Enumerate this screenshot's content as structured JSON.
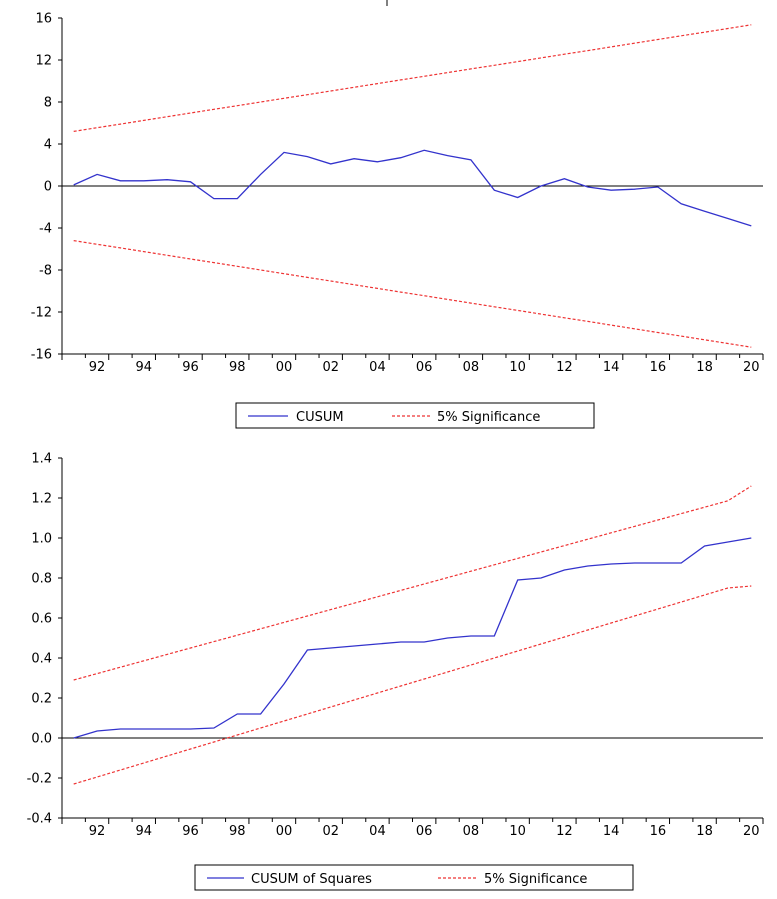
{
  "chart_data": [
    {
      "type": "line",
      "x": [
        "1991",
        "1992",
        "1993",
        "1994",
        "1995",
        "1996",
        "1997",
        "1998",
        "1999",
        "2000",
        "2001",
        "2002",
        "2003",
        "2004",
        "2005",
        "2006",
        "2007",
        "2008",
        "2009",
        "2010",
        "2011",
        "2012",
        "2013",
        "2014",
        "2015",
        "2016",
        "2017",
        "2018",
        "2019",
        "2020"
      ],
      "x_range": [
        1990.5,
        2020.5
      ],
      "ylim": [
        -16,
        16
      ],
      "yticks": [
        16,
        12,
        8,
        4,
        0,
        -4,
        -8,
        -12,
        -16
      ],
      "xticks": [
        {
          "label": "92",
          "year": 1992
        },
        {
          "label": "94",
          "year": 1994
        },
        {
          "label": "96",
          "year": 1996
        },
        {
          "label": "98",
          "year": 1998
        },
        {
          "label": "00",
          "year": 2000
        },
        {
          "label": "02",
          "year": 2002
        },
        {
          "label": "04",
          "year": 2004
        },
        {
          "label": "06",
          "year": 2006
        },
        {
          "label": "08",
          "year": 2008
        },
        {
          "label": "10",
          "year": 2010
        },
        {
          "label": "12",
          "year": 2012
        },
        {
          "label": "14",
          "year": 2014
        },
        {
          "label": "16",
          "year": 2016
        },
        {
          "label": "18",
          "year": 2018
        },
        {
          "label": "20",
          "year": 2020
        }
      ],
      "zero_line": 0,
      "series": [
        {
          "name": "CUSUM",
          "color": "#3333cc",
          "style": "solid",
          "values": [
            0.1,
            1.1,
            0.5,
            0.5,
            0.6,
            0.4,
            -1.2,
            -1.2,
            1.1,
            3.2,
            2.8,
            2.1,
            2.6,
            2.3,
            2.7,
            3.4,
            2.9,
            2.5,
            -0.4,
            -1.1,
            0.0,
            0.7,
            -0.1,
            -0.4,
            -0.3,
            -0.1,
            -1.7,
            -2.4,
            -3.1,
            -3.8
          ]
        },
        {
          "name": "5% Significance",
          "color": "#ee3333",
          "style": "dashed",
          "values": [
            5.2,
            5.55,
            5.9,
            6.25,
            6.6,
            6.95,
            7.3,
            7.65,
            8.0,
            8.35,
            8.7,
            9.05,
            9.4,
            9.75,
            10.1,
            10.45,
            10.8,
            11.15,
            11.5,
            11.85,
            12.2,
            12.55,
            12.9,
            13.25,
            13.6,
            13.95,
            14.3,
            14.65,
            15.0,
            15.35
          ]
        },
        {
          "name": "",
          "color": "#ee3333",
          "style": "dashed",
          "values": [
            -5.2,
            -5.55,
            -5.9,
            -6.25,
            -6.6,
            -6.95,
            -7.3,
            -7.65,
            -8.0,
            -8.35,
            -8.7,
            -9.05,
            -9.4,
            -9.75,
            -10.1,
            -10.45,
            -10.8,
            -11.15,
            -11.5,
            -11.85,
            -12.2,
            -12.55,
            -12.9,
            -13.25,
            -13.6,
            -13.95,
            -14.3,
            -14.65,
            -15.0,
            -15.35
          ]
        }
      ],
      "legend": {
        "position": "bottom-center",
        "items": [
          "CUSUM",
          "5% Significance"
        ]
      }
    },
    {
      "type": "line",
      "x": [
        "1991",
        "1992",
        "1993",
        "1994",
        "1995",
        "1996",
        "1997",
        "1998",
        "1999",
        "2000",
        "2001",
        "2002",
        "2003",
        "2004",
        "2005",
        "2006",
        "2007",
        "2008",
        "2009",
        "2010",
        "2011",
        "2012",
        "2013",
        "2014",
        "2015",
        "2016",
        "2017",
        "2018",
        "2019",
        "2020"
      ],
      "x_range": [
        1990.5,
        2020.5
      ],
      "ylim": [
        -0.4,
        1.4
      ],
      "yticks": [
        "1.4",
        "1.2",
        "1.0",
        "0.8",
        "0.6",
        "0.4",
        "0.2",
        "0.0",
        "-0.2",
        "-0.4"
      ],
      "xticks": [
        {
          "label": "92",
          "year": 1992
        },
        {
          "label": "94",
          "year": 1994
        },
        {
          "label": "96",
          "year": 1996
        },
        {
          "label": "98",
          "year": 1998
        },
        {
          "label": "00",
          "year": 2000
        },
        {
          "label": "02",
          "year": 2002
        },
        {
          "label": "04",
          "year": 2004
        },
        {
          "label": "06",
          "year": 2006
        },
        {
          "label": "08",
          "year": 2008
        },
        {
          "label": "10",
          "year": 2010
        },
        {
          "label": "12",
          "year": 2012
        },
        {
          "label": "14",
          "year": 2014
        },
        {
          "label": "16",
          "year": 2016
        },
        {
          "label": "18",
          "year": 2018
        },
        {
          "label": "20",
          "year": 2020
        }
      ],
      "zero_line": 0,
      "series": [
        {
          "name": "CUSUM of Squares",
          "color": "#3333cc",
          "style": "solid",
          "values": [
            0.0,
            0.035,
            0.045,
            0.045,
            0.045,
            0.045,
            0.05,
            0.12,
            0.12,
            0.27,
            0.44,
            0.45,
            0.46,
            0.47,
            0.48,
            0.48,
            0.5,
            0.51,
            0.51,
            0.79,
            0.8,
            0.84,
            0.86,
            0.87,
            0.875,
            0.875,
            0.875,
            0.96,
            0.98,
            1.0
          ]
        },
        {
          "name": "5% Significance",
          "color": "#ee3333",
          "style": "dashed",
          "values": [
            0.29,
            0.322,
            0.354,
            0.386,
            0.418,
            0.45,
            0.482,
            0.514,
            0.546,
            0.578,
            0.61,
            0.642,
            0.674,
            0.706,
            0.738,
            0.77,
            0.802,
            0.834,
            0.866,
            0.898,
            0.93,
            0.962,
            0.994,
            1.026,
            1.058,
            1.09,
            1.122,
            1.154,
            1.186,
            1.26
          ]
        },
        {
          "name": "",
          "color": "#ee3333",
          "style": "dashed",
          "values": [
            -0.23,
            -0.195,
            -0.16,
            -0.125,
            -0.09,
            -0.055,
            -0.02,
            0.015,
            0.05,
            0.085,
            0.12,
            0.155,
            0.19,
            0.225,
            0.26,
            0.295,
            0.33,
            0.365,
            0.4,
            0.435,
            0.47,
            0.505,
            0.54,
            0.575,
            0.61,
            0.645,
            0.68,
            0.715,
            0.75,
            0.76
          ]
        }
      ],
      "legend": {
        "position": "bottom-center",
        "items": [
          "CUSUM of Squares",
          "5% Significance"
        ]
      }
    }
  ]
}
